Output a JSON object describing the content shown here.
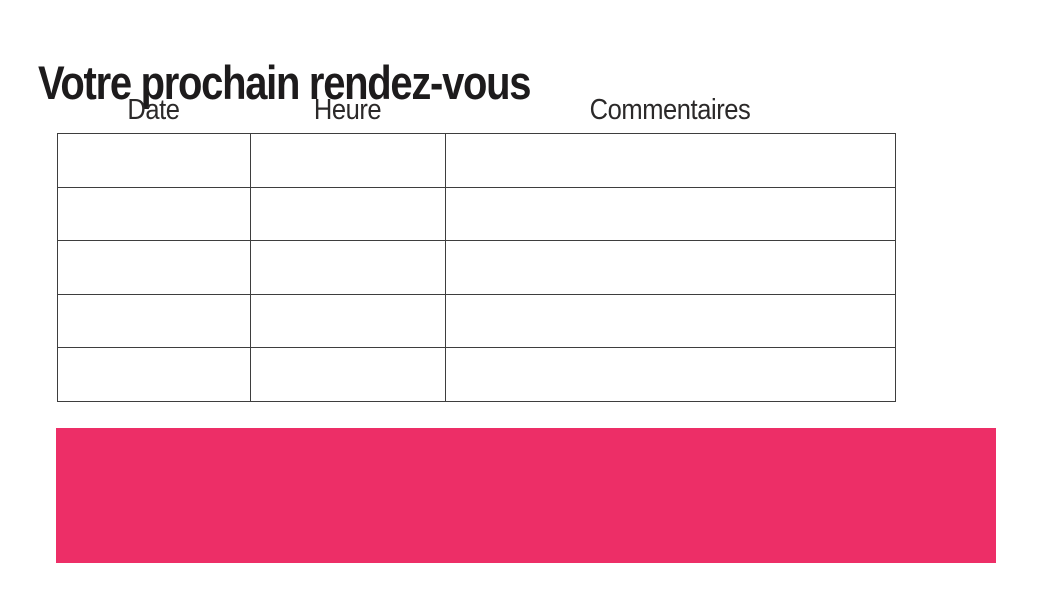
{
  "page": {
    "title": "Votre prochain rendez-vous"
  },
  "table": {
    "headers": [
      "Date",
      "Heure",
      "Commentaires"
    ],
    "rows": [
      [
        "",
        "",
        ""
      ],
      [
        "",
        "",
        ""
      ],
      [
        "",
        "",
        ""
      ],
      [
        "",
        "",
        ""
      ],
      [
        "",
        "",
        ""
      ]
    ]
  },
  "banner": {
    "color": "#ED2E67",
    "text": ""
  }
}
